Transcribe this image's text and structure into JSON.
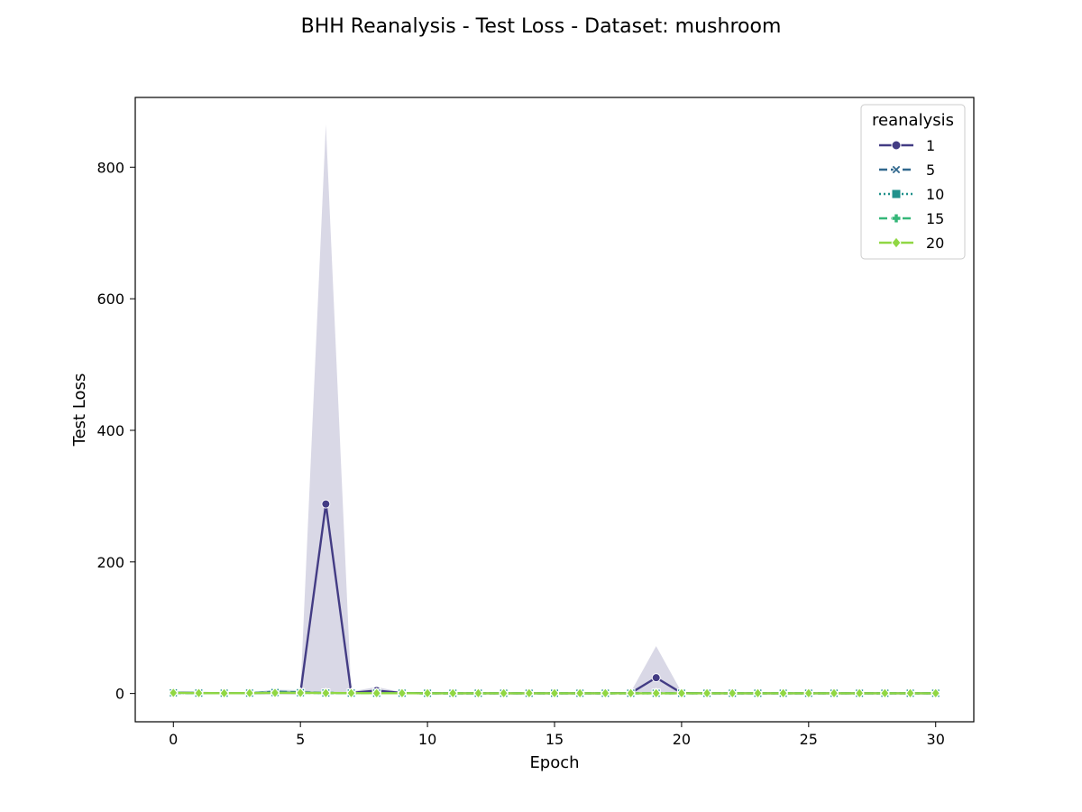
{
  "chart_data": {
    "type": "line",
    "title": "BHH Reanalysis - Test Loss - Dataset: mushroom",
    "xlabel": "Epoch",
    "ylabel": "Test Loss",
    "xlim": [
      -1.5,
      31.5
    ],
    "ylim": [
      -43,
      906
    ],
    "xticks": [
      0,
      5,
      10,
      15,
      20,
      25,
      30
    ],
    "yticks": [
      0,
      200,
      400,
      600,
      800
    ],
    "grid": false,
    "legend": {
      "title": "reanalysis",
      "position": "top-right"
    },
    "x": [
      0,
      1,
      2,
      3,
      4,
      5,
      6,
      7,
      8,
      9,
      10,
      11,
      12,
      13,
      14,
      15,
      16,
      17,
      18,
      19,
      20,
      21,
      22,
      23,
      24,
      25,
      26,
      27,
      28,
      29,
      30
    ],
    "series": [
      {
        "name": "1",
        "color": "#433c84",
        "dash": "solid",
        "marker": "circle",
        "values": [
          1.5,
          0.8,
          0.5,
          0.6,
          1.0,
          0.8,
          288,
          0.9,
          4.5,
          0.7,
          0.5,
          0.4,
          0.4,
          0.4,
          0.4,
          0.4,
          0.4,
          0.4,
          0.6,
          24,
          0.7,
          0.4,
          0.4,
          0.4,
          0.4,
          0.4,
          0.4,
          0.4,
          0.4,
          0.4,
          0.4
        ],
        "ci_lower": [
          0.5,
          0.3,
          0.2,
          0.2,
          0.3,
          0.3,
          0,
          0.3,
          1,
          0.2,
          0.2,
          0.1,
          0.1,
          0.1,
          0.1,
          0.1,
          0.1,
          0.1,
          0.2,
          0,
          0.2,
          0.1,
          0.1,
          0.1,
          0.1,
          0.1,
          0.1,
          0.1,
          0.1,
          0.1,
          0.1
        ],
        "ci_upper": [
          3,
          2,
          1.5,
          2,
          5,
          3,
          865,
          3,
          10,
          2,
          1.5,
          1,
          1,
          1,
          1,
          1,
          1,
          1,
          2,
          72,
          2,
          1,
          1,
          1,
          1,
          1,
          1,
          1,
          1,
          1,
          1
        ]
      },
      {
        "name": "5",
        "color": "#31688e",
        "dash": "dashed",
        "marker": "x",
        "values": [
          1.0,
          0.6,
          0.5,
          0.6,
          2.5,
          2.0,
          0.8,
          0.6,
          0.5,
          0.5,
          0.4,
          0.4,
          0.4,
          0.4,
          0.4,
          0.4,
          0.4,
          0.4,
          0.4,
          0.5,
          0.4,
          0.4,
          0.4,
          0.4,
          0.4,
          0.4,
          0.4,
          0.4,
          0.4,
          0.4,
          0.4
        ],
        "ci_lower": [
          0.3,
          0.2,
          0.2,
          0.2,
          0.5,
          0.5,
          0.2,
          0.2,
          0.1,
          0.1,
          0.1,
          0.1,
          0.1,
          0.1,
          0.1,
          0.1,
          0.1,
          0.1,
          0.1,
          0.1,
          0.1,
          0.1,
          0.1,
          0.1,
          0.1,
          0.1,
          0.1,
          0.1,
          0.1,
          0.1,
          0.1
        ],
        "ci_upper": [
          2,
          1.5,
          1,
          1.5,
          6,
          5,
          2,
          1.5,
          1,
          1,
          1,
          1,
          1,
          1,
          1,
          1,
          1,
          1,
          1,
          1,
          1,
          1,
          1,
          1,
          1,
          1,
          1,
          1,
          1,
          1,
          1
        ]
      },
      {
        "name": "10",
        "color": "#21918c",
        "dash": "dotted",
        "marker": "square",
        "values": [
          1.0,
          0.6,
          0.5,
          0.6,
          1.5,
          1.2,
          0.7,
          0.6,
          0.5,
          0.5,
          0.4,
          0.4,
          0.4,
          0.4,
          0.4,
          0.4,
          0.4,
          0.4,
          0.4,
          0.4,
          0.4,
          0.4,
          0.4,
          0.4,
          0.4,
          0.4,
          0.4,
          0.4,
          0.4,
          0.4,
          0.4
        ],
        "ci_lower": [
          0.3,
          0.2,
          0.2,
          0.2,
          0.3,
          0.3,
          0.2,
          0.2,
          0.1,
          0.1,
          0.1,
          0.1,
          0.1,
          0.1,
          0.1,
          0.1,
          0.1,
          0.1,
          0.1,
          0.1,
          0.1,
          0.1,
          0.1,
          0.1,
          0.1,
          0.1,
          0.1,
          0.1,
          0.1,
          0.1,
          0.1
        ],
        "ci_upper": [
          2,
          1.5,
          1,
          1.5,
          4,
          3,
          1.5,
          1.5,
          1,
          1,
          1,
          1,
          1,
          1,
          1,
          1,
          1,
          1,
          1,
          1,
          1,
          1,
          1,
          1,
          1,
          1,
          1,
          1,
          1,
          1,
          1
        ]
      },
      {
        "name": "15",
        "color": "#35b779",
        "dash": "dashed",
        "marker": "plus",
        "values": [
          1.0,
          0.6,
          0.5,
          0.6,
          1.2,
          1.0,
          0.7,
          0.6,
          0.5,
          0.5,
          0.4,
          0.4,
          0.4,
          0.4,
          0.4,
          0.4,
          0.4,
          0.4,
          0.4,
          0.4,
          0.4,
          0.4,
          0.4,
          0.4,
          0.4,
          0.4,
          0.4,
          0.4,
          0.4,
          0.4,
          0.4
        ],
        "ci_lower": [
          0.3,
          0.2,
          0.2,
          0.2,
          0.3,
          0.3,
          0.2,
          0.2,
          0.1,
          0.1,
          0.1,
          0.1,
          0.1,
          0.1,
          0.1,
          0.1,
          0.1,
          0.1,
          0.1,
          0.1,
          0.1,
          0.1,
          0.1,
          0.1,
          0.1,
          0.1,
          0.1,
          0.1,
          0.1,
          0.1,
          0.1
        ],
        "ci_upper": [
          2,
          1.5,
          1,
          1.5,
          3,
          2.5,
          1.5,
          1.5,
          1,
          1,
          1,
          1,
          1,
          1,
          1,
          1,
          1,
          1,
          1,
          1,
          1,
          1,
          1,
          1,
          1,
          1,
          1,
          1,
          1,
          1,
          1
        ]
      },
      {
        "name": "20",
        "color": "#90d743",
        "dash": "solid",
        "marker": "diamond",
        "values": [
          1.0,
          0.6,
          0.5,
          0.6,
          1.0,
          0.9,
          0.7,
          0.6,
          0.5,
          0.5,
          0.4,
          0.4,
          0.4,
          0.4,
          0.4,
          0.4,
          0.4,
          0.4,
          0.4,
          0.4,
          0.4,
          0.4,
          0.4,
          0.4,
          0.4,
          0.4,
          0.4,
          0.4,
          0.4,
          0.4,
          0.4
        ],
        "ci_lower": [
          0.3,
          0.2,
          0.2,
          0.2,
          0.3,
          0.3,
          0.2,
          0.2,
          0.1,
          0.1,
          0.1,
          0.1,
          0.1,
          0.1,
          0.1,
          0.1,
          0.1,
          0.1,
          0.1,
          0.1,
          0.1,
          0.1,
          0.1,
          0.1,
          0.1,
          0.1,
          0.1,
          0.1,
          0.1,
          0.1,
          0.1
        ],
        "ci_upper": [
          2,
          1.5,
          1,
          1.5,
          2.5,
          2,
          1.5,
          1.5,
          1,
          1,
          1,
          1,
          1,
          1,
          1,
          1,
          1,
          1,
          1,
          1,
          1,
          1,
          1,
          1,
          1,
          1,
          1,
          1,
          1,
          1,
          1
        ]
      }
    ]
  }
}
